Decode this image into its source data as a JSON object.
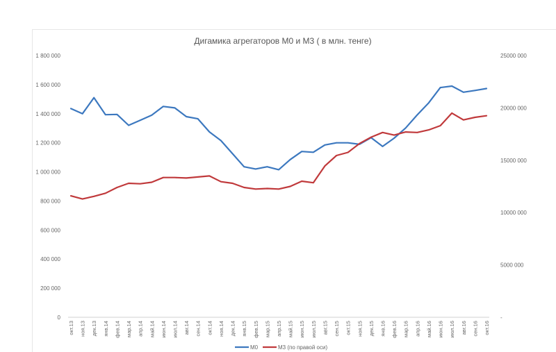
{
  "chart_data": {
    "type": "line",
    "title": "Дигамика агрегаторов М0 и М3 ( в млн. тенге)",
    "categories": [
      "окт.13",
      "ноя.13",
      "дек.13",
      "янв.14",
      "фев.14",
      "мар.14",
      "апр.14",
      "май.14",
      "июн.14",
      "июл.14",
      "авг.14",
      "сен.14",
      "окт.14",
      "ноя.14",
      "дек.14",
      "янв.15",
      "фев.15",
      "мар.15",
      "апр.15",
      "май.15",
      "июн.15",
      "июл.15",
      "авг.15",
      "сен.15",
      "окт.15",
      "ноя.15",
      "дек.15",
      "янв.16",
      "фев.16",
      "мар.16",
      "апр.16",
      "май.16",
      "июн.16",
      "июл.16",
      "авг.16",
      "сен.16",
      "окт.16"
    ],
    "left_axis": {
      "ylim": [
        0,
        1800000
      ],
      "ticks": [
        {
          "value": 0,
          "label": "0"
        },
        {
          "value": 200000,
          "label": "200 000"
        },
        {
          "value": 400000,
          "label": "400 000"
        },
        {
          "value": 600000,
          "label": "600 000"
        },
        {
          "value": 800000,
          "label": "800 000"
        },
        {
          "value": 1000000,
          "label": "1 000 000"
        },
        {
          "value": 1200000,
          "label": "1 200 000"
        },
        {
          "value": 1400000,
          "label": "1 400 000"
        },
        {
          "value": 1600000,
          "label": "1 600 000"
        },
        {
          "value": 1800000,
          "label": "1 800 000"
        }
      ]
    },
    "right_axis": {
      "ylim": [
        0,
        25000000
      ],
      "ticks": [
        {
          "value": 0,
          "label": "-"
        },
        {
          "value": 5000000,
          "label": "5000 000"
        },
        {
          "value": 10000000,
          "label": "10000 000"
        },
        {
          "value": 15000000,
          "label": "15000 000"
        },
        {
          "value": 20000000,
          "label": "20000 000"
        },
        {
          "value": 25000000,
          "label": "25000 000"
        }
      ]
    },
    "series": [
      {
        "name": "М0",
        "axis": "left",
        "color": "#3c78bf",
        "values": [
          1435000,
          1400000,
          1510000,
          1393000,
          1395000,
          1320000,
          1355000,
          1390000,
          1450000,
          1440000,
          1380000,
          1365000,
          1275000,
          1215000,
          1125000,
          1035000,
          1020000,
          1035000,
          1015000,
          1085000,
          1140000,
          1135000,
          1185000,
          1200000,
          1200000,
          1190000,
          1235000,
          1175000,
          1232000,
          1302000,
          1392000,
          1475000,
          1580000,
          1590000,
          1548000,
          1560000,
          1573000
        ]
      },
      {
        "name": "М3 (по правой оси)",
        "axis": "right",
        "color": "#c0393b",
        "values": [
          11600000,
          11300000,
          11550000,
          11850000,
          12400000,
          12800000,
          12750000,
          12900000,
          13350000,
          13350000,
          13300000,
          13400000,
          13500000,
          12950000,
          12800000,
          12400000,
          12250000,
          12300000,
          12250000,
          12500000,
          13000000,
          12850000,
          14450000,
          15450000,
          15750000,
          16600000,
          17200000,
          17650000,
          17400000,
          17700000,
          17650000,
          17900000,
          18300000,
          19500000,
          18850000,
          19100000,
          19250000
        ]
      }
    ],
    "grid": false,
    "legend_position": "bottom"
  }
}
